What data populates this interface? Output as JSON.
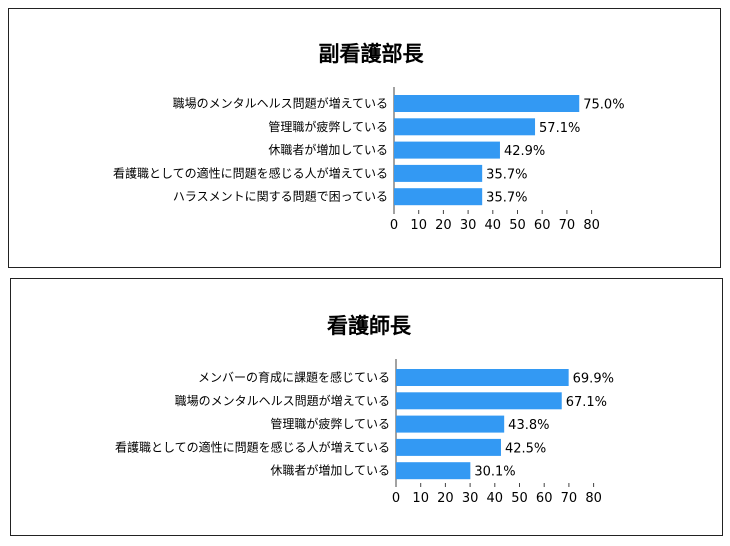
{
  "chart_data": [
    {
      "type": "bar",
      "orientation": "horizontal",
      "title": "副看護部長",
      "categories": [
        "職場のメンタルヘルス問題が増えている",
        "管理職が疲弊している",
        "休職者が増加している",
        "看護職としての適性に問題を感じる人が増えている",
        "ハラスメントに関する問題で困っている"
      ],
      "values": [
        75.0,
        57.1,
        42.9,
        35.7,
        35.7
      ],
      "value_labels": [
        "75.0%",
        "57.1%",
        "42.9%",
        "35.7%",
        "35.7%"
      ],
      "xlim": [
        0,
        80
      ],
      "xticks": [
        "0",
        "10",
        "20",
        "30",
        "40",
        "50",
        "60",
        "70",
        "80"
      ],
      "bar_color": "#3399f3",
      "grid": false,
      "legend": "none"
    },
    {
      "type": "bar",
      "orientation": "horizontal",
      "title": "看護師長",
      "categories": [
        "メンバーの育成に課題を感じている",
        "職場のメンタルヘルス問題が増えている",
        "管理職が疲弊している",
        "看護職としての適性に問題を感じる人が増えている",
        "休職者が増加している"
      ],
      "values": [
        69.9,
        67.1,
        43.8,
        42.5,
        30.1
      ],
      "value_labels": [
        "69.9%",
        "67.1%",
        "43.8%",
        "42.5%",
        "30.1%"
      ],
      "xlim": [
        0,
        80
      ],
      "xticks": [
        "0",
        "10",
        "20",
        "30",
        "40",
        "50",
        "60",
        "70",
        "80"
      ],
      "bar_color": "#3399f3",
      "grid": false,
      "legend": "none"
    }
  ]
}
